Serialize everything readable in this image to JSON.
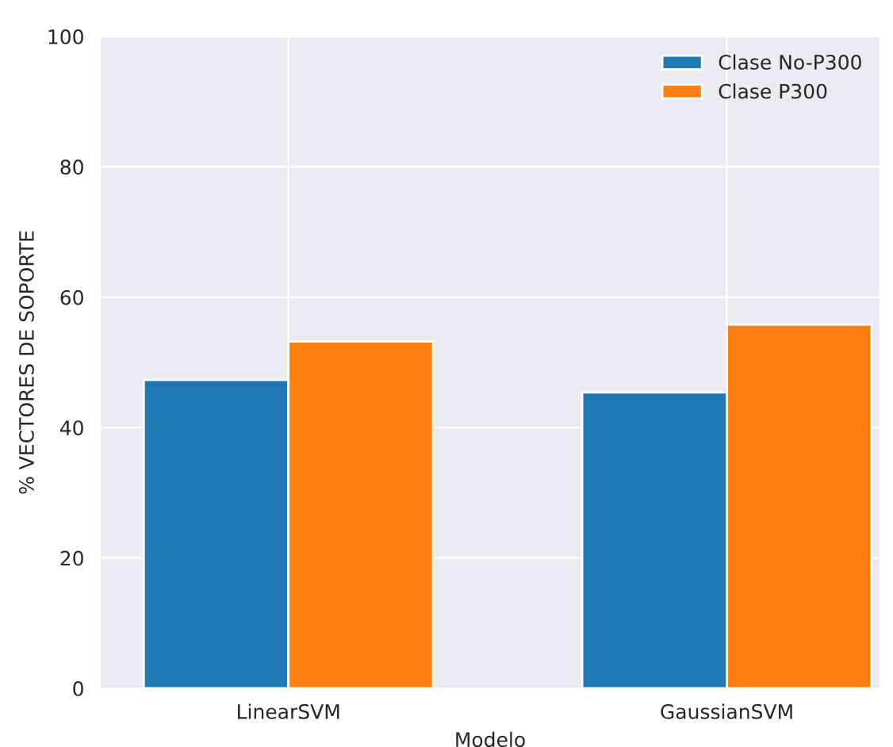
{
  "chart_data": {
    "type": "bar",
    "xlabel": "Modelo",
    "ylabel": "% VECTORES DE SOPORTE",
    "categories": [
      "LinearSVM",
      "GaussianSVM"
    ],
    "series": [
      {
        "name": "Clase No-P300",
        "color": "#1f77b4",
        "values": [
          47.3,
          45.4
        ]
      },
      {
        "name": "Clase P300",
        "color": "#ff7f0e",
        "values": [
          53.2,
          55.8
        ]
      }
    ],
    "ylim": [
      0,
      100
    ],
    "yticks": [
      0,
      20,
      40,
      60,
      80,
      100
    ],
    "grid": true,
    "legend": "top right"
  }
}
